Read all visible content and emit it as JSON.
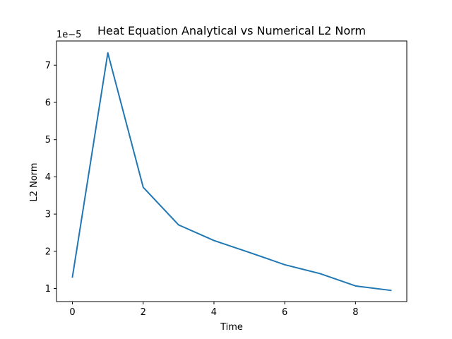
{
  "chart_data": {
    "type": "line",
    "title": "Heat Equation Analytical vs Numerical L2 Norm",
    "xlabel": "Time",
    "ylabel": "L2 Norm",
    "y_offset_text": "1e−5",
    "xlim": [
      -0.45,
      9.45
    ],
    "ylim": [
      0.65,
      7.65
    ],
    "x_ticks": [
      0,
      2,
      4,
      6,
      8
    ],
    "x_tick_labels": [
      "0",
      "2",
      "4",
      "6",
      "8"
    ],
    "y_ticks": [
      1,
      2,
      3,
      4,
      5,
      6,
      7
    ],
    "y_tick_labels": [
      "1",
      "2",
      "3",
      "4",
      "5",
      "6",
      "7"
    ],
    "y_scale_factor": "1e-5",
    "grid": false,
    "series": [
      {
        "color": "#1f77b4",
        "x": [
          0,
          1,
          2,
          3,
          4,
          5,
          6,
          7,
          8,
          9
        ],
        "y": [
          1.31,
          7.33,
          3.72,
          2.71,
          2.29,
          1.97,
          1.64,
          1.4,
          1.07,
          0.95
        ]
      }
    ]
  }
}
